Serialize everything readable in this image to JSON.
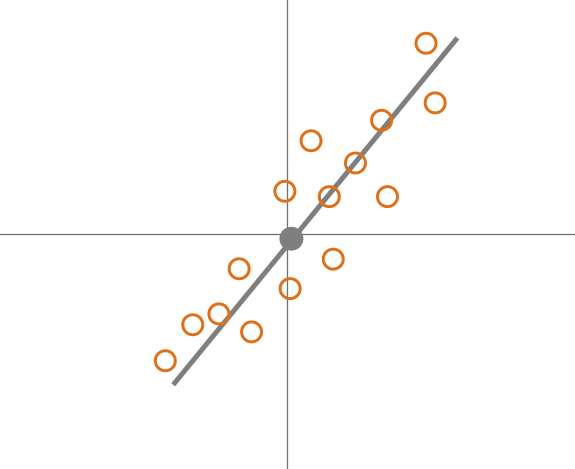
{
  "chart_data": {
    "type": "scatter",
    "title": "",
    "xlabel": "",
    "ylabel": "",
    "xlim": [
      -4.4,
      4.4
    ],
    "ylim": [
      -3.9,
      3.9
    ],
    "grid": false,
    "axes": "crosshair-through-origin",
    "series": [
      {
        "marker": "hollow-circle",
        "color": "#e07018",
        "points": [
          {
            "x": 2.12,
            "y": 3.18
          },
          {
            "x": 2.26,
            "y": 2.19
          },
          {
            "x": 1.44,
            "y": 1.9
          },
          {
            "x": 0.36,
            "y": 1.56
          },
          {
            "x": 1.04,
            "y": 1.19
          },
          {
            "x": -0.04,
            "y": 0.72
          },
          {
            "x": 0.64,
            "y": 0.63
          },
          {
            "x": 1.53,
            "y": 0.63
          },
          {
            "x": 0.7,
            "y": -0.41
          },
          {
            "x": -0.74,
            "y": -0.57
          },
          {
            "x": 0.04,
            "y": -0.9
          },
          {
            "x": -1.05,
            "y": -1.32
          },
          {
            "x": -1.45,
            "y": -1.5
          },
          {
            "x": -0.55,
            "y": -1.62
          },
          {
            "x": -1.87,
            "y": -2.1
          }
        ]
      }
    ],
    "fit_line": {
      "color": "#7f7f7f",
      "from": {
        "x": -1.75,
        "y": -2.5
      },
      "to": {
        "x": 2.6,
        "y": 3.27
      }
    },
    "center_point": {
      "x": 0.06,
      "y": -0.07,
      "color": "#7f7f7f"
    },
    "axis_color": "#707070"
  }
}
